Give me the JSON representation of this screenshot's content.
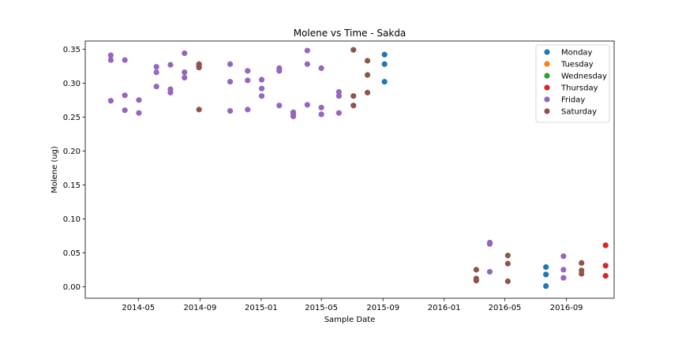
{
  "chart_data": {
    "type": "scatter",
    "title": "Molene vs Time - Sakda",
    "xlabel": "Sample Date",
    "ylabel": "Molene (ug)",
    "x_ticks": [
      "2014-05",
      "2014-09",
      "2015-01",
      "2015-05",
      "2015-09",
      "2016-01",
      "2016-05",
      "2016-09"
    ],
    "y_ticks": [
      "0.00",
      "0.05",
      "0.10",
      "0.15",
      "0.20",
      "0.25",
      "0.30",
      "0.35"
    ],
    "xlim": [
      "2014-01-15",
      "2016-12-05"
    ],
    "ylim": [
      -0.017,
      0.362
    ],
    "grid": false,
    "legend_position": "top-right",
    "series": [
      {
        "name": "Monday",
        "color": "#1f77b4",
        "points": [
          [
            "2015-09-04",
            0.342
          ],
          [
            "2015-09-04",
            0.328
          ],
          [
            "2015-09-04",
            0.302
          ],
          [
            "2016-07-22",
            0.029
          ],
          [
            "2016-07-22",
            0.018
          ],
          [
            "2016-07-22",
            0.001
          ]
        ]
      },
      {
        "name": "Tuesday",
        "color": "#ff7f0e",
        "points": []
      },
      {
        "name": "Wednesday",
        "color": "#2ca02c",
        "points": []
      },
      {
        "name": "Thursday",
        "color": "#d62728",
        "points": [
          [
            "2016-11-18",
            0.061
          ],
          [
            "2016-11-18",
            0.031
          ],
          [
            "2016-11-18",
            0.016
          ]
        ]
      },
      {
        "name": "Friday",
        "color": "#9467bd",
        "points": [
          [
            "2014-03-07",
            0.341
          ],
          [
            "2014-03-07",
            0.334
          ],
          [
            "2014-03-07",
            0.274
          ],
          [
            "2014-04-04",
            0.334
          ],
          [
            "2014-04-04",
            0.282
          ],
          [
            "2014-04-04",
            0.26
          ],
          [
            "2014-05-02",
            0.275
          ],
          [
            "2014-05-02",
            0.256
          ],
          [
            "2014-06-06",
            0.324
          ],
          [
            "2014-06-06",
            0.316
          ],
          [
            "2014-06-06",
            0.295
          ],
          [
            "2014-07-04",
            0.327
          ],
          [
            "2014-07-04",
            0.291
          ],
          [
            "2014-07-04",
            0.286
          ],
          [
            "2014-08-01",
            0.344
          ],
          [
            "2014-08-01",
            0.316
          ],
          [
            "2014-08-01",
            0.308
          ],
          [
            "2014-10-31",
            0.328
          ],
          [
            "2014-10-31",
            0.302
          ],
          [
            "2014-10-31",
            0.259
          ],
          [
            "2014-12-05",
            0.318
          ],
          [
            "2014-12-05",
            0.304
          ],
          [
            "2014-12-05",
            0.261
          ],
          [
            "2015-01-02",
            0.305
          ],
          [
            "2015-01-02",
            0.292
          ],
          [
            "2015-01-02",
            0.281
          ],
          [
            "2015-02-06",
            0.322
          ],
          [
            "2015-02-06",
            0.318
          ],
          [
            "2015-02-06",
            0.267
          ],
          [
            "2015-03-06",
            0.257
          ],
          [
            "2015-03-06",
            0.254
          ],
          [
            "2015-03-06",
            0.251
          ],
          [
            "2015-04-03",
            0.348
          ],
          [
            "2015-04-03",
            0.328
          ],
          [
            "2015-04-03",
            0.268
          ],
          [
            "2015-05-01",
            0.322
          ],
          [
            "2015-05-01",
            0.264
          ],
          [
            "2015-05-01",
            0.254
          ],
          [
            "2015-06-05",
            0.287
          ],
          [
            "2015-06-05",
            0.281
          ],
          [
            "2015-06-05",
            0.256
          ],
          [
            "2016-04-01",
            0.065
          ],
          [
            "2016-04-01",
            0.063
          ],
          [
            "2016-04-01",
            0.022
          ],
          [
            "2016-08-26",
            0.045
          ],
          [
            "2016-08-26",
            0.025
          ],
          [
            "2016-08-26",
            0.013
          ]
        ]
      },
      {
        "name": "Saturday",
        "color": "#8c564b",
        "points": [
          [
            "2014-08-30",
            0.328
          ],
          [
            "2014-08-30",
            0.325
          ],
          [
            "2014-08-30",
            0.323
          ],
          [
            "2014-08-30",
            0.261
          ],
          [
            "2015-07-04",
            0.349
          ],
          [
            "2015-07-04",
            0.281
          ],
          [
            "2015-07-04",
            0.267
          ],
          [
            "2015-08-01",
            0.333
          ],
          [
            "2015-08-01",
            0.312
          ],
          [
            "2015-08-01",
            0.286
          ],
          [
            "2016-03-05",
            0.025
          ],
          [
            "2016-03-05",
            0.012
          ],
          [
            "2016-03-05",
            0.009
          ],
          [
            "2016-05-07",
            0.046
          ],
          [
            "2016-05-07",
            0.034
          ],
          [
            "2016-05-07",
            0.008
          ],
          [
            "2016-10-01",
            0.035
          ],
          [
            "2016-10-01",
            0.024
          ],
          [
            "2016-10-01",
            0.019
          ]
        ]
      }
    ]
  }
}
